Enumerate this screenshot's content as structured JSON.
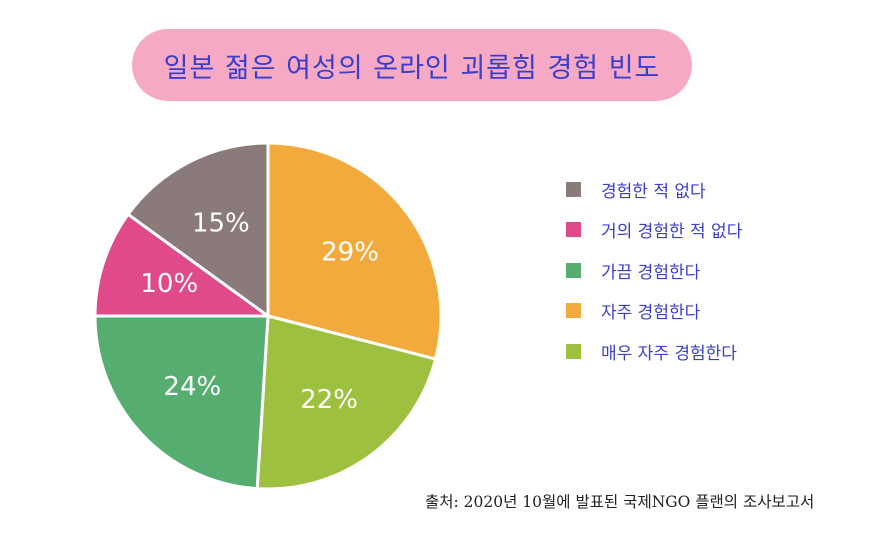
{
  "title": "일본 젊은 여성의 온라인 괴롭힘 경험 빈도",
  "source": "출처: 2020년 10월에 발표된 국제NGO 플랜의 조사보고서",
  "chart_data": {
    "type": "pie",
    "title": "일본 젊은 여성의 온라인 괴롭힘 경험 빈도",
    "legend_position": "right",
    "slices": [
      {
        "label": "자주 경험한다",
        "value": 29,
        "display": "29%",
        "color": "#f2aa3c"
      },
      {
        "label": "매우 자주 경험한다",
        "value": 22,
        "display": "22%",
        "color": "#9dc13f"
      },
      {
        "label": "가끔 경험한다",
        "value": 24,
        "display": "24%",
        "color": "#55ad6f"
      },
      {
        "label": "거의 경험한 적 없다",
        "value": 10,
        "display": "10%",
        "color": "#e04a8b"
      },
      {
        "label": "경험한 적 없다",
        "value": 15,
        "display": "15%",
        "color": "#8a7a79"
      }
    ],
    "legend_order": [
      "경험한 적 없다",
      "거의 경험한 적 없다",
      "가끔 경험한다",
      "자주 경험한다",
      "매우 자주 경험한다"
    ]
  }
}
